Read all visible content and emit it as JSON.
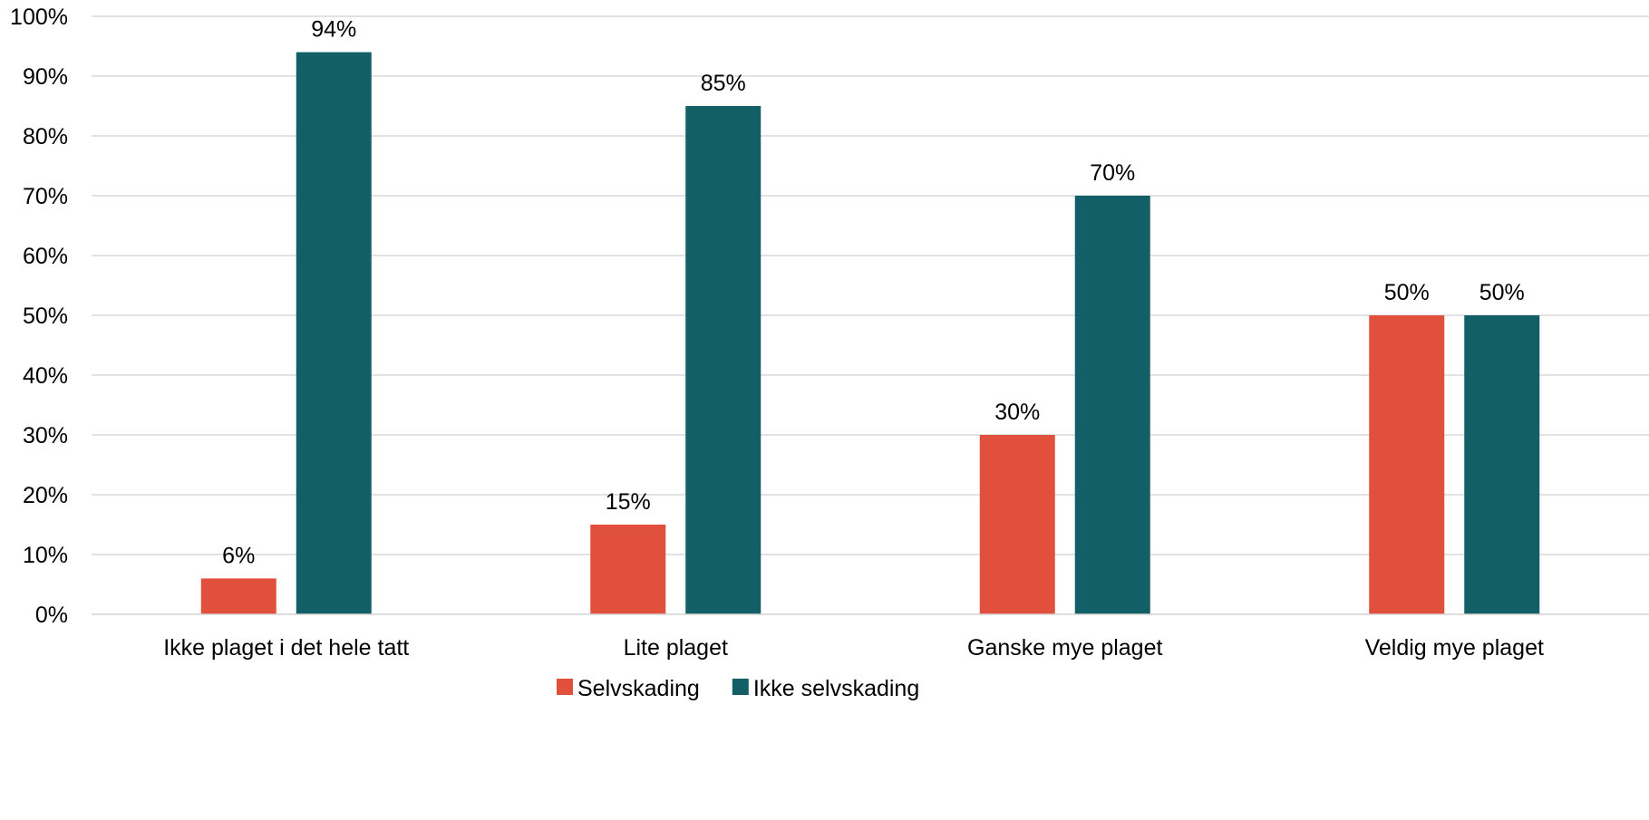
{
  "chart_data": {
    "type": "bar",
    "categories": [
      "Ikke plaget i det hele tatt",
      "Lite plaget",
      "Ganske mye plaget",
      "Veldig mye plaget"
    ],
    "series": [
      {
        "name": "Selvskading",
        "values": [
          6,
          15,
          30,
          50
        ],
        "labels": [
          "6%",
          "15%",
          "30%",
          "50%"
        ],
        "color": "#E0503C"
      },
      {
        "name": "Ikke selvskading",
        "values": [
          94,
          85,
          70,
          50
        ],
        "labels": [
          "94%",
          "85%",
          "70%",
          "50%"
        ],
        "color": "#135F67"
      }
    ],
    "ylim": [
      0,
      100
    ],
    "yticks": [
      "0%",
      "10%",
      "20%",
      "30%",
      "40%",
      "50%",
      "60%",
      "70%",
      "80%",
      "90%",
      "100%"
    ],
    "grid": true,
    "legend": "bottom-center",
    "gridline_color": "#D9D9D9"
  }
}
